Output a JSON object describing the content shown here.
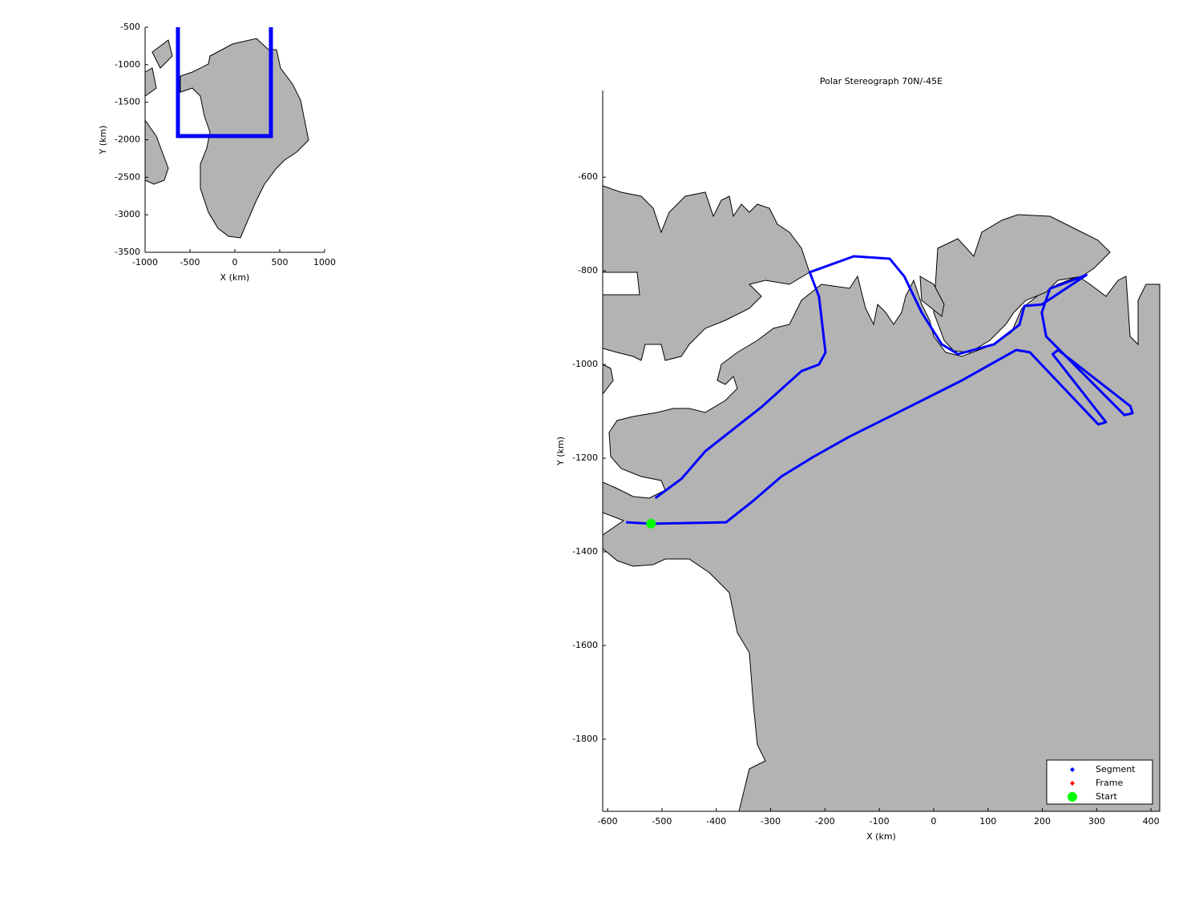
{
  "chart_data": [
    {
      "type": "line",
      "xlabel": "X (km)",
      "ylabel": "Y (km)",
      "xlim": [
        -1000,
        1000
      ],
      "ylim": [
        -3500,
        -500
      ],
      "xticks": [
        -1000,
        -500,
        0,
        500,
        1000
      ],
      "yticks": [
        -3500,
        -3000,
        -2500,
        -2000,
        -1500,
        -1000,
        -500
      ],
      "series": [
        {
          "color": "#0000ff",
          "x": [
            -634,
            -634,
            402,
            402
          ],
          "y": [
            -500,
            -1951,
            -1951,
            -500
          ]
        }
      ]
    },
    {
      "type": "line",
      "title": "Polar Stereograph 70N/-45E",
      "xlabel": "X (km)",
      "ylabel": "Y (km)",
      "xlim": [
        -609,
        416
      ],
      "ylim": [
        -1954,
        -415
      ],
      "xticks": [
        -600,
        -500,
        -400,
        -300,
        -200,
        -100,
        0,
        100,
        200,
        300,
        400
      ],
      "yticks": [
        -1800,
        -1600,
        -1400,
        -1200,
        -1000,
        -800,
        -600
      ],
      "legend": "lower right",
      "series": [
        {
          "name": "Segment",
          "color": "#0000ff",
          "marker": "diamond",
          "x": [
            -566,
            -520,
            -382,
            -332,
            -280,
            -221,
            -155,
            -51,
            52,
            152,
            177,
            303,
            317,
            219,
            229,
            362,
            366,
            351,
            207,
            199,
            214,
            281,
            199,
            167,
            158,
            111,
            45,
            15,
            -22,
            -54,
            -81,
            -147,
            -228,
            -211,
            -199,
            -211,
            -243,
            -317,
            -420,
            -464,
            -512
          ],
          "y": [
            -1337,
            -1340,
            -1337,
            -1291,
            -1239,
            -1197,
            -1154,
            -1094,
            -1034,
            -969,
            -974,
            -1128,
            -1123,
            -978,
            -969,
            -1089,
            -1104,
            -1108,
            -940,
            -889,
            -838,
            -809,
            -872,
            -875,
            -915,
            -957,
            -978,
            -957,
            -889,
            -812,
            -774,
            -769,
            -803,
            -855,
            -974,
            -1000,
            -1014,
            -1091,
            -1185,
            -1244,
            -1285
          ]
        },
        {
          "name": "Frame",
          "color": "#ff0000",
          "marker": "diamond",
          "x": [],
          "y": []
        },
        {
          "name": "Start",
          "color": "#00ff00",
          "marker": "circle",
          "x": [
            -520
          ],
          "y": [
            -1340
          ]
        }
      ]
    }
  ]
}
